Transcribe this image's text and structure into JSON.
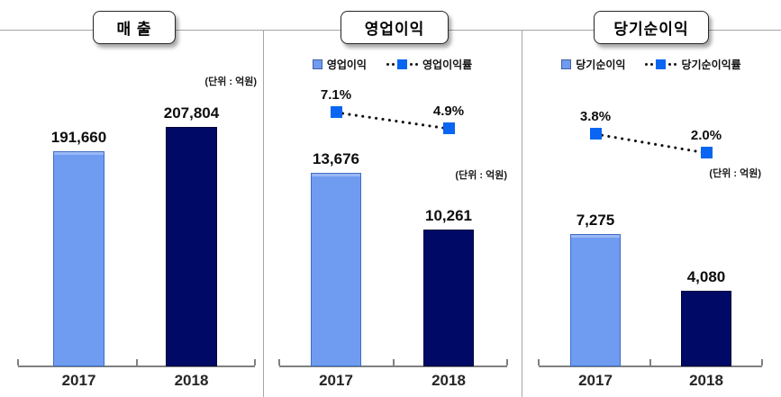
{
  "colors": {
    "bar_2017": "#6f9bf1",
    "bar_2018": "#000a66",
    "marker_blue": "#0a66f2",
    "dotted_line": "#111111",
    "rule_gray": "#a6a6a6",
    "axis_gray": "#808080"
  },
  "chart_data": [
    {
      "type": "bar",
      "title": "매 출",
      "unit_label": "(단위 : 억원)",
      "categories": [
        "2017",
        "2018"
      ],
      "values": [
        191660,
        207804
      ],
      "value_labels": [
        "191,660",
        "207,804"
      ],
      "bar_colors": [
        "#6f9bf1",
        "#000a66"
      ],
      "ylim": [
        48750,
        262000
      ],
      "grid": "off",
      "legend_position": "none"
    },
    {
      "type": "bar-line",
      "title": "영업이익",
      "unit_label": "(단위 : 억원)",
      "legend": {
        "bar": "영업이익",
        "line": "영업이익률"
      },
      "categories": [
        "2017",
        "2018"
      ],
      "bar_values": [
        13676,
        10261
      ],
      "value_labels": [
        "13,676",
        "10,261"
      ],
      "line_values_pct": [
        7.1,
        4.9
      ],
      "line_value_labels": [
        "7.1%",
        "4.9%"
      ],
      "bar_colors": [
        "#6f9bf1",
        "#000a66"
      ],
      "marker_color": "#0a66f2",
      "grid": "off",
      "legend_position": "top"
    },
    {
      "type": "bar-line",
      "title": "당기순이익",
      "unit_label": "(단위 : 억원)",
      "legend": {
        "bar": "당기순이익",
        "line": "당기순이익률"
      },
      "categories": [
        "2017",
        "2018"
      ],
      "bar_values": [
        7275,
        4080
      ],
      "value_labels": [
        "7,275",
        "4,080"
      ],
      "line_values_pct": [
        3.8,
        2.0
      ],
      "line_value_labels": [
        "3.8%",
        "2.0%"
      ],
      "bar_colors": [
        "#6f9bf1",
        "#000a66"
      ],
      "marker_color": "#0a66f2",
      "grid": "off",
      "legend_position": "top"
    }
  ]
}
